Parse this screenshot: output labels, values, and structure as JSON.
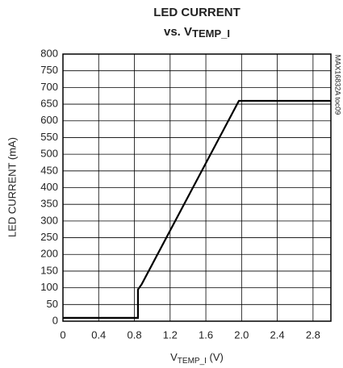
{
  "chart_data": {
    "type": "line",
    "title": "LED CURRENT",
    "subtitle": {
      "main": "vs. V",
      "sub": "TEMP_I"
    },
    "x_label": {
      "main": "V",
      "sub": "TEMP_I",
      "unit": " (V)"
    },
    "y_label": "LED CURRENT (mA)",
    "annotation": "MAX16832A toc09",
    "x": [
      0,
      0.84,
      0.84,
      0.88,
      1.97,
      3.0
    ],
    "series": [
      {
        "name": "LED CURRENT",
        "color": "#000000",
        "values": [
          10,
          10,
          95,
          110,
          660,
          660
        ]
      }
    ],
    "xlim": [
      0,
      3.0
    ],
    "ylim": [
      0,
      800
    ],
    "xticks": [
      0,
      0.4,
      0.8,
      1.2,
      1.6,
      {
        "value": 2,
        "label": "2.0"
      },
      2.4,
      2.8
    ],
    "yticks": [
      0,
      50,
      100,
      150,
      200,
      250,
      300,
      350,
      400,
      450,
      500,
      550,
      600,
      650,
      700,
      750,
      800
    ],
    "grid": true
  }
}
